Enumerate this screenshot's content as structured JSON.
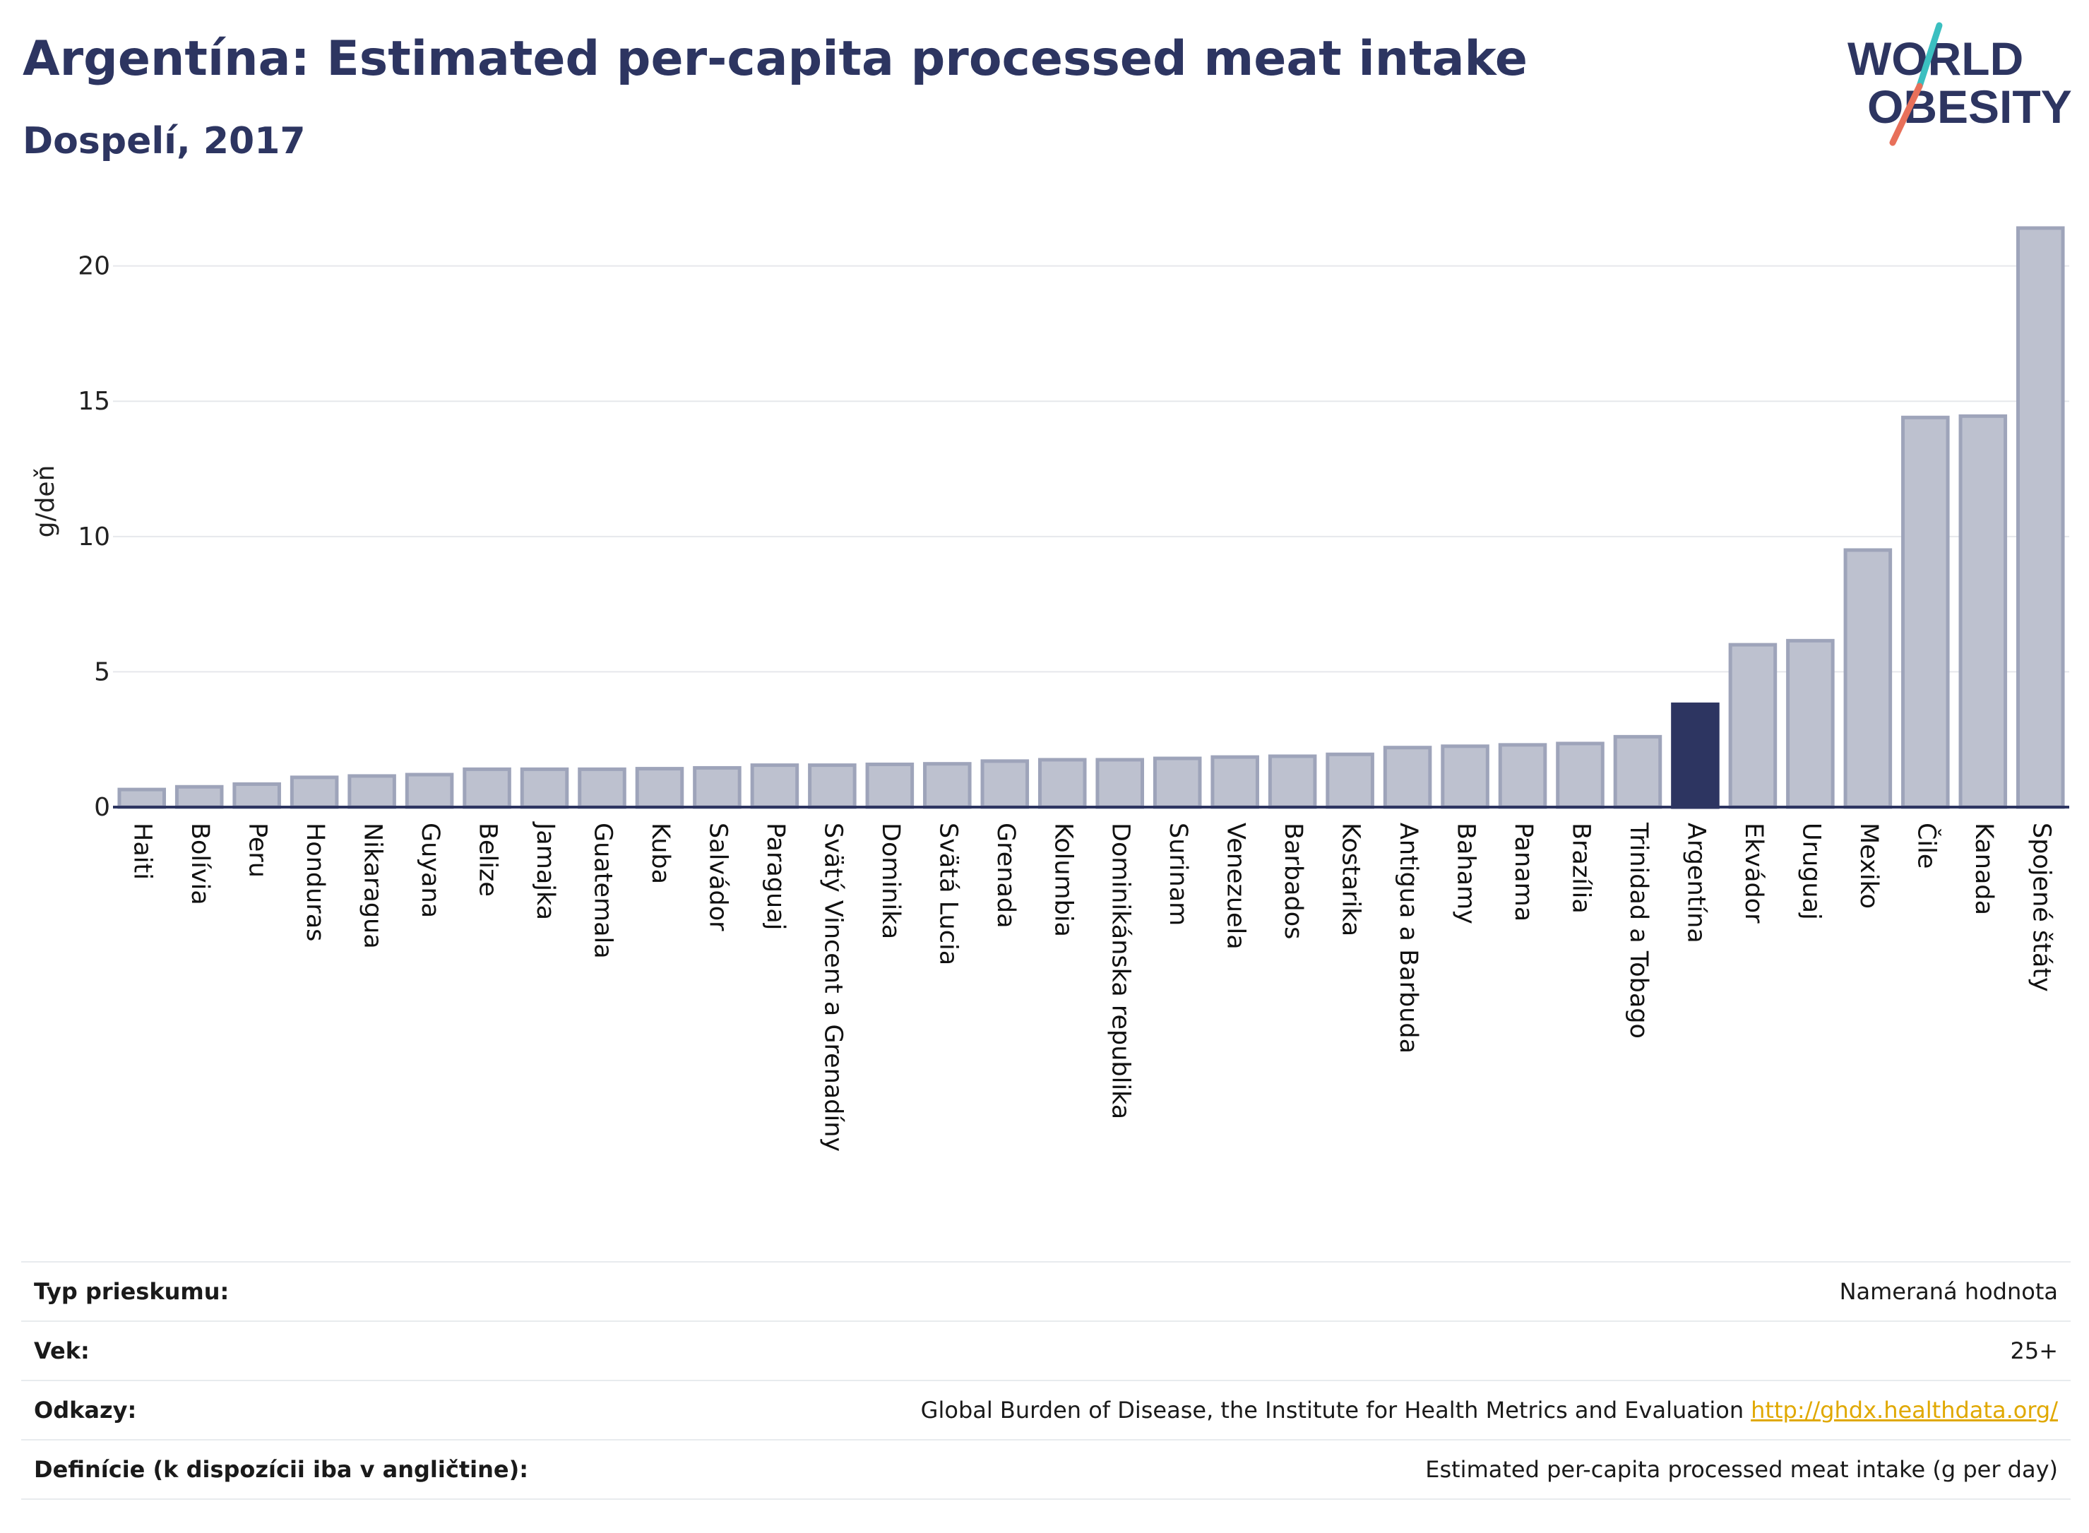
{
  "header": {
    "title": "Argentína: Estimated per-capita processed meat intake",
    "subtitle": "Dospelí, 2017"
  },
  "logo": {
    "line1": "WORLD",
    "line2": "OBESITY",
    "colors": {
      "text": "#2d3561",
      "accent_teal": "#3bbfc0",
      "accent_coral": "#e8705a"
    }
  },
  "chart_data": {
    "type": "bar",
    "title": "",
    "xlabel": "",
    "ylabel": "g/deň",
    "ylim": [
      0,
      22
    ],
    "yticks": [
      0,
      5,
      10,
      15,
      20
    ],
    "grid": true,
    "categories": [
      "Haiti",
      "Bolívia",
      "Peru",
      "Honduras",
      "Nikaragua",
      "Guyana",
      "Belize",
      "Jamajka",
      "Guatemala",
      "Kuba",
      "Salvádor",
      "Paraguaj",
      "Svätý Vincent a Grenadíny",
      "Dominika",
      "Svätá Lucia",
      "Grenada",
      "Kolumbia",
      "Dominikánska republika",
      "Surinam",
      "Venezuela",
      "Barbados",
      "Kostarika",
      "Antigua a Barbuda",
      "Bahamy",
      "Panama",
      "Brazília",
      "Trinidad a Tobago",
      "Argentína",
      "Ekvádor",
      "Uruguaj",
      "Mexiko",
      "Čile",
      "Kanada",
      "Spojené štáty"
    ],
    "values": [
      0.65,
      0.75,
      0.85,
      1.1,
      1.15,
      1.2,
      1.4,
      1.4,
      1.4,
      1.42,
      1.45,
      1.55,
      1.55,
      1.58,
      1.6,
      1.7,
      1.75,
      1.75,
      1.8,
      1.85,
      1.88,
      1.95,
      2.2,
      2.25,
      2.3,
      2.35,
      2.6,
      3.8,
      6.0,
      6.15,
      9.5,
      14.4,
      14.45,
      21.4
    ],
    "highlight": "Argentína",
    "colors": {
      "bar": "#bdc1cf",
      "bar_border": "#9ea4ba",
      "highlight": "#2d3561",
      "grid": "#e6e8ec",
      "axis": "#2d3561"
    }
  },
  "info": {
    "rows": [
      {
        "key": "Typ prieskumu:",
        "value": "Nameraná hodnota",
        "link": ""
      },
      {
        "key": "Vek:",
        "value": "25+",
        "link": ""
      },
      {
        "key": "Odkazy:",
        "value": "Global Burden of Disease, the Institute for Health Metrics and Evaluation",
        "link": "http://ghdx.healthdata.org/"
      },
      {
        "key": "Definície (k dispozícii iba v angličtine):",
        "value": "Estimated per-capita processed meat intake (g per day)",
        "link": ""
      }
    ]
  }
}
